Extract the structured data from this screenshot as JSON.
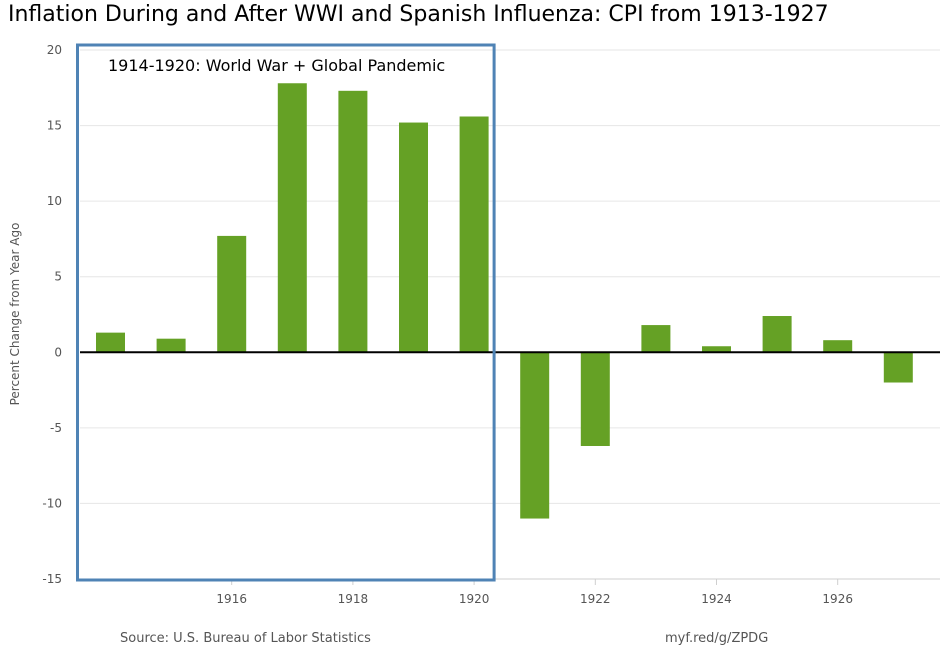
{
  "colors": {
    "bar": "#65a125",
    "highlight_box": "#4f83b5",
    "zero_line": "#000000",
    "grid": "#e6e6e6",
    "axis_text": "#555555"
  },
  "footer": {
    "source": "Source: U.S. Bureau of Labor Statistics",
    "link": "myf.red/g/ZPDG"
  },
  "chart_data": {
    "type": "bar",
    "title": "Inflation During and After WWI and Spanish Influenza: CPI from 1913-1927",
    "ylabel": "Percent Change from Year Ago",
    "xlabel": "",
    "ylim": [
      -15,
      20
    ],
    "yticks": [
      20,
      15,
      10,
      5,
      0,
      -5,
      -10,
      -15
    ],
    "xticks": [
      "1916",
      "1918",
      "1920",
      "1922",
      "1924",
      "1926"
    ],
    "categories": [
      "1914",
      "1915",
      "1916",
      "1917",
      "1918",
      "1919",
      "1920",
      "1921",
      "1922",
      "1923",
      "1924",
      "1925",
      "1926",
      "1927"
    ],
    "values": [
      1.3,
      0.9,
      7.7,
      17.8,
      17.3,
      15.2,
      15.6,
      -11.0,
      -6.2,
      1.8,
      0.4,
      2.4,
      0.8,
      -2.0
    ],
    "grid": true,
    "annotation": {
      "text": "1914-1920: World War + Global Pandemic",
      "range": [
        "1914",
        "1920"
      ]
    }
  }
}
